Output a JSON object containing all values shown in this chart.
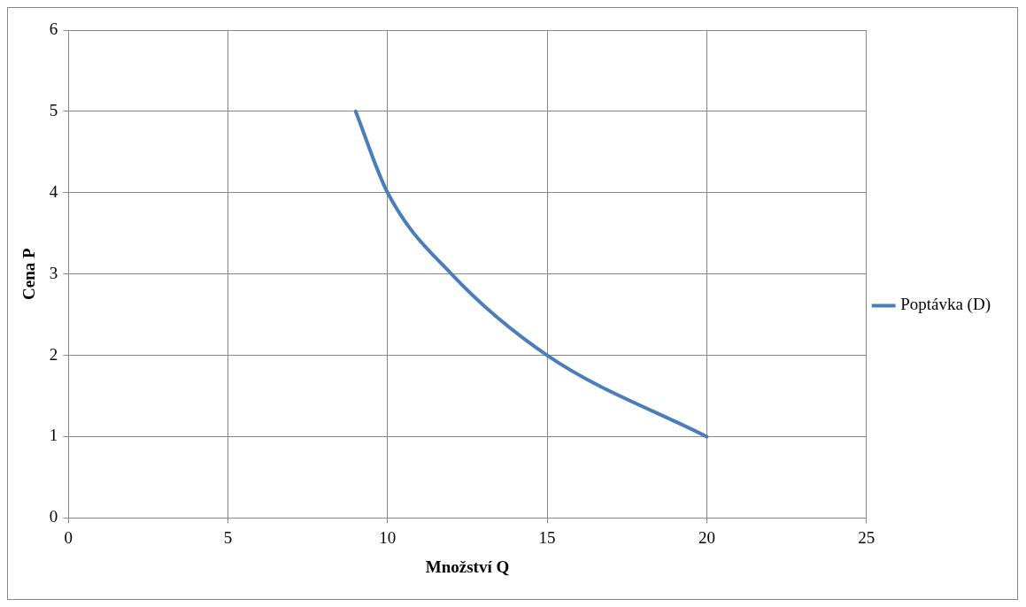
{
  "chart_data": {
    "type": "line",
    "xlabel": "Množství Q",
    "ylabel": "Cena P",
    "xlim": [
      0,
      25
    ],
    "xticks": [
      0,
      5,
      10,
      15,
      20,
      25
    ],
    "ylim": [
      0,
      6
    ],
    "yticks": [
      0,
      1,
      2,
      3,
      4,
      5,
      6
    ],
    "grid": true,
    "legend": "right",
    "marker": "none",
    "line_style": "solid",
    "series": [
      {
        "name": "Poptávka (D)",
        "color": "#4a7ebb",
        "x": [
          9,
          10,
          12,
          15,
          20
        ],
        "values": [
          5,
          4,
          3,
          2,
          1
        ]
      }
    ]
  }
}
